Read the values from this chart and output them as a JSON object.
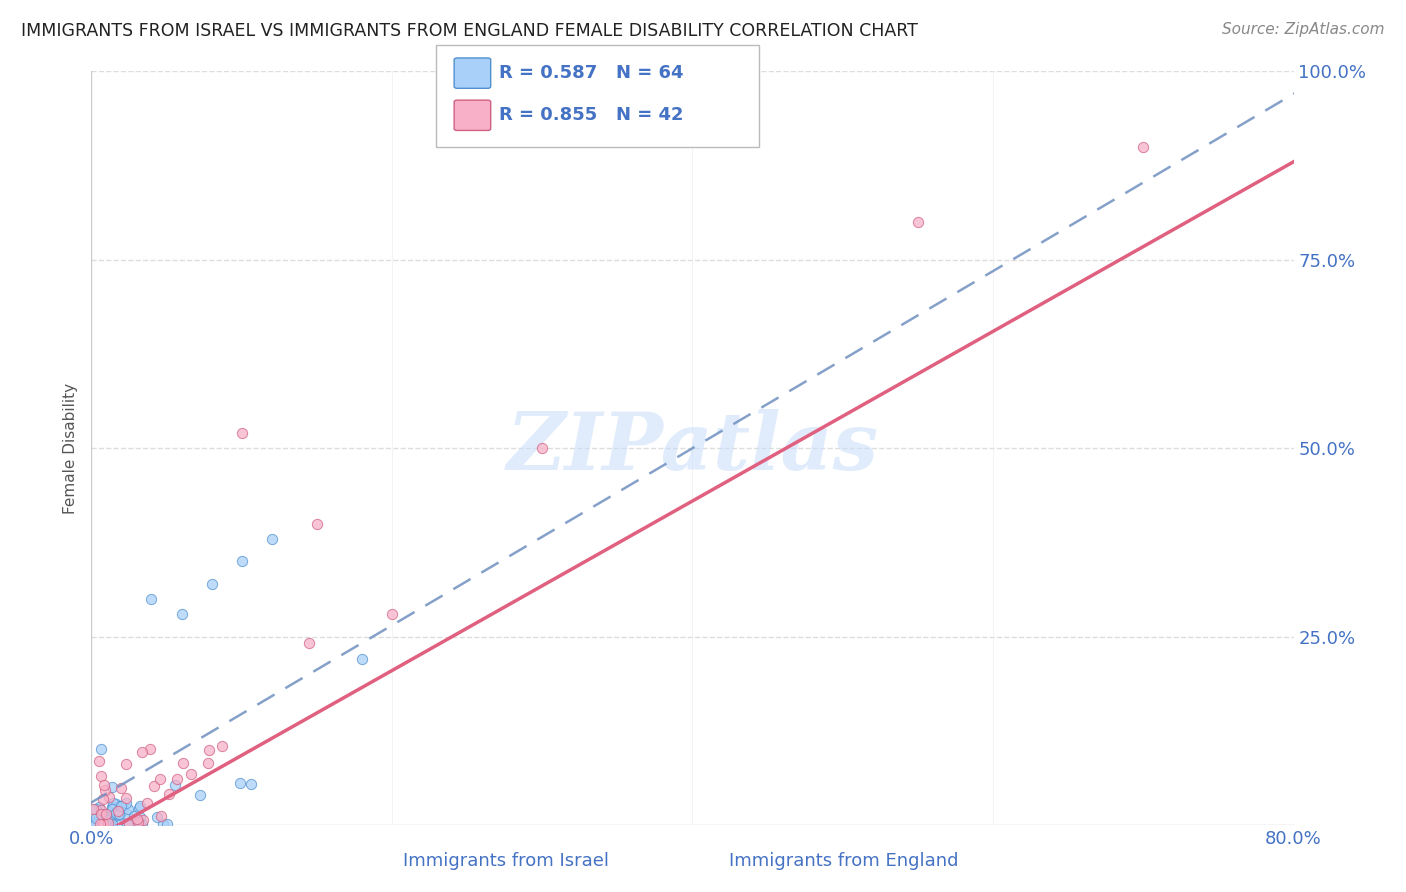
{
  "title": "IMMIGRANTS FROM ISRAEL VS IMMIGRANTS FROM ENGLAND FEMALE DISABILITY CORRELATION CHART",
  "source": "Source: ZipAtlas.com",
  "xlabel_bottom": [
    "Immigrants from Israel",
    "Immigrants from England"
  ],
  "ylabel": "Female Disability",
  "xlim": [
    0.0,
    0.8
  ],
  "ylim": [
    0.0,
    1.0
  ],
  "ytick_values": [
    0.0,
    0.25,
    0.5,
    0.75,
    1.0
  ],
  "ytick_labels_right": [
    "",
    "25.0%",
    "50.0%",
    "75.0%",
    "100.0%"
  ],
  "xtick_values": [
    0.0,
    0.8
  ],
  "xtick_labels": [
    "0.0%",
    "80.0%"
  ],
  "israel_R": 0.587,
  "israel_N": 64,
  "england_R": 0.855,
  "england_N": 42,
  "israel_color": "#A8D0F8",
  "israel_edge_color": "#5090D0",
  "england_color": "#F8B0C8",
  "england_edge_color": "#D06080",
  "israel_line_color": "#7090C0",
  "england_line_color": "#E06080",
  "watermark": "ZIPatlas",
  "watermark_color": "#C8DEFA",
  "background_color": "#FFFFFF",
  "title_color": "#222222",
  "source_color": "#888888",
  "axis_label_color": "#4472C4",
  "grid_color": "#DDDDDD",
  "grid_linestyle": "--"
}
